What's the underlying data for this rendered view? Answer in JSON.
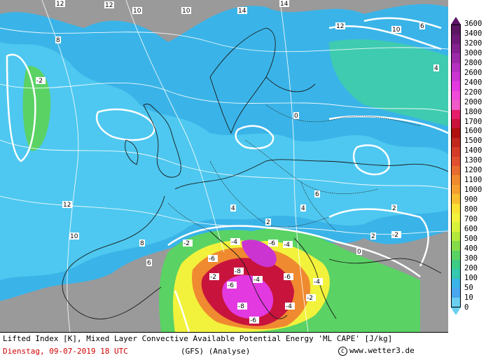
{
  "footer": {
    "title": "Lifted Index [K], Mixed Layer Convective Available Potential Energy 'ML CAPE' [J/kg]",
    "date": "Dienstag, 09-07-2019  18 UTC",
    "model": "(GFS)  (Analyse)",
    "site": "www.wetter3.de",
    "copyright_symbol": "C"
  },
  "legend": {
    "labels": [
      "3600",
      "3400",
      "3200",
      "3000",
      "2800",
      "2600",
      "2400",
      "2200",
      "2000",
      "1800",
      "1700",
      "1600",
      "1500",
      "1400",
      "1300",
      "1200",
      "1100",
      "1000",
      "900",
      "800",
      "700",
      "600",
      "500",
      "400",
      "300",
      "200",
      "100",
      "50",
      "10",
      "0"
    ],
    "colors": [
      "#5b1563",
      "#6d1a78",
      "#84208f",
      "#9c2aa8",
      "#b52fc0",
      "#cc34d2",
      "#e23ae0",
      "#f04ad8",
      "#f05ac8",
      "#e41c6a",
      "#c8143c",
      "#b01010",
      "#c0281e",
      "#d43c28",
      "#e05030",
      "#e86c30",
      "#f08a30",
      "#f4a030",
      "#f8be30",
      "#fae234",
      "#f2f23c",
      "#d8f23c",
      "#b4e83c",
      "#86dc48",
      "#5ad264",
      "#3ecb84",
      "#34c8b0",
      "#3ab4e8",
      "#4aa6ee",
      "#6ad0f0"
    ]
  },
  "map": {
    "li_labels": [
      {
        "t": "12"
      },
      {
        "t": "12"
      },
      {
        "t": "10"
      },
      {
        "t": "10"
      },
      {
        "t": "14"
      },
      {
        "t": "14"
      },
      {
        "t": "12"
      },
      {
        "t": "10"
      },
      {
        "t": "6"
      },
      {
        "t": "4"
      },
      {
        "t": "8"
      },
      {
        "t": "-2"
      },
      {
        "t": "-2"
      },
      {
        "t": "-4"
      },
      {
        "t": "-6"
      },
      {
        "t": "-8"
      },
      {
        "t": "-6"
      },
      {
        "t": "-4"
      },
      {
        "t": "-6"
      },
      {
        "t": "-4"
      },
      {
        "t": "-2"
      },
      {
        "t": "-6"
      },
      {
        "t": "-8"
      },
      {
        "t": "-4"
      },
      {
        "t": "-6"
      },
      {
        "t": "-4"
      },
      {
        "t": "-2"
      },
      {
        "t": "0"
      },
      {
        "t": "2"
      },
      {
        "t": "4"
      },
      {
        "t": "6"
      },
      {
        "t": "2"
      },
      {
        "t": "0"
      },
      {
        "t": "-2"
      },
      {
        "t": "2"
      },
      {
        "t": "4"
      },
      {
        "t": "6"
      },
      {
        "t": "8"
      },
      {
        "t": "10"
      },
      {
        "t": "12"
      }
    ]
  }
}
